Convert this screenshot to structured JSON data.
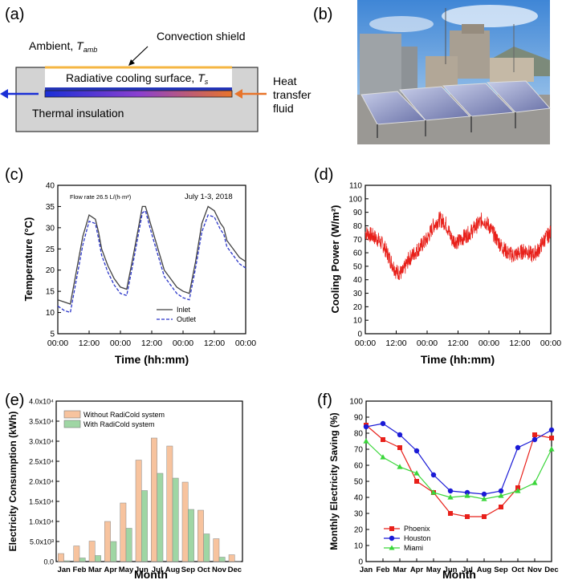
{
  "panels": {
    "a": {
      "label": "(a)",
      "ambient": "Ambient,",
      "ambient_sym": "T",
      "ambient_sub": "amb",
      "convection_shield": "Convection shield",
      "surface": "Radiative cooling surface,",
      "surface_sym": "T",
      "surface_sub": "s",
      "heat_transfer_1": "Heat",
      "heat_transfer_2": "transfer",
      "heat_transfer_3": "fluid",
      "insulation": "Thermal insulation",
      "colors": {
        "shield": "#f5b642",
        "hot_fluid": "#e8742a",
        "cold_fluid": "#1a2fd6",
        "box_fill": "#d3d3d3"
      }
    },
    "b": {
      "label": "(b)"
    },
    "c": {
      "label": "(c)"
    },
    "d": {
      "label": "(d)"
    },
    "e": {
      "label": "(e)"
    },
    "f": {
      "label": "(f)"
    }
  },
  "chart_data": [
    {
      "id": "c",
      "type": "line",
      "ylabel": "Temperature (°C)",
      "xlabel": "Time (hh:mm)",
      "annotation_left": "Flow rate 26.5 L/(h·m²)",
      "annotation_right": "July 1-3, 2018",
      "ylim": [
        5,
        40
      ],
      "yticks": [
        "5",
        "10",
        "15",
        "20",
        "25",
        "30",
        "35",
        "40"
      ],
      "xlim": [
        0,
        60
      ],
      "xticks": [
        "00:00",
        "12:00",
        "00:00",
        "12:00",
        "00:00",
        "12:00",
        "00:00"
      ],
      "series": [
        {
          "name": "Inlet",
          "color": "#404040",
          "style": "solid",
          "x": [
            0,
            2,
            4,
            6,
            8,
            10,
            12,
            13,
            14,
            16,
            18,
            20,
            22,
            24,
            26,
            27,
            28,
            30,
            32,
            34,
            36,
            38,
            40,
            42,
            44,
            46,
            48,
            50,
            52,
            53,
            54,
            56,
            58,
            60
          ],
          "values": [
            13,
            12.5,
            12,
            20,
            28,
            33,
            32,
            29,
            25,
            21,
            18,
            16,
            15.5,
            23,
            31,
            35,
            35,
            30,
            25,
            20,
            18,
            16,
            15,
            14.5,
            22,
            31,
            35,
            34,
            31,
            30,
            27,
            25,
            23,
            22
          ]
        },
        {
          "name": "Outlet",
          "color": "#2a35c9",
          "style": "dashed",
          "x": [
            0,
            2,
            4,
            6,
            8,
            10,
            12,
            13,
            14,
            16,
            18,
            20,
            22,
            24,
            26,
            27,
            28,
            30,
            32,
            34,
            36,
            38,
            40,
            42,
            44,
            46,
            48,
            50,
            52,
            53,
            54,
            56,
            58,
            60
          ],
          "values": [
            11.5,
            10.5,
            10,
            18,
            26,
            31.5,
            31,
            27.5,
            23.5,
            19.5,
            16.5,
            14.5,
            14,
            21.5,
            29.5,
            33.5,
            34,
            28.5,
            23.5,
            18.5,
            16.5,
            14.5,
            13.5,
            13,
            20.5,
            29,
            33,
            32.5,
            29.5,
            28.5,
            25.5,
            23.5,
            21.5,
            20.5
          ]
        }
      ]
    },
    {
      "id": "d",
      "type": "line",
      "ylabel": "Cooling Power (W/m²)",
      "xlabel": "Time (hh:mm)",
      "ylim": [
        0,
        110
      ],
      "yticks": [
        "0",
        "10",
        "20",
        "30",
        "40",
        "50",
        "60",
        "70",
        "80",
        "90",
        "100",
        "110"
      ],
      "xlim": [
        0,
        60
      ],
      "xticks": [
        "00:00",
        "12:00",
        "00:00",
        "12:00",
        "00:00",
        "12:00",
        "00:00"
      ],
      "series": [
        {
          "name": "Cooling Power",
          "color": "#e8201a",
          "x": [
            0,
            2,
            4,
            6,
            8,
            10,
            12,
            14,
            16,
            18,
            20,
            22,
            24,
            26,
            28,
            30,
            32,
            34,
            36,
            38,
            40,
            42,
            44,
            46,
            48,
            50,
            52,
            54,
            56,
            58,
            60
          ],
          "values": [
            75,
            73,
            70,
            65,
            55,
            46,
            45,
            55,
            60,
            65,
            70,
            80,
            85,
            82,
            70,
            68,
            72,
            75,
            80,
            85,
            80,
            72,
            65,
            60,
            58,
            60,
            62,
            58,
            62,
            70,
            75
          ]
        }
      ]
    },
    {
      "id": "e",
      "type": "bar",
      "ylabel": "Electricity Consumption (kWh)",
      "xlabel": "Month",
      "ylim": [
        0,
        40000
      ],
      "yticks": [
        "0.0",
        "5.0x10³",
        "1.0x10⁴",
        "1.5x10⁴",
        "2.0x10⁴",
        "2.5x10⁴",
        "3.0x10⁴",
        "3.5x10⁴",
        "4.0x10⁴"
      ],
      "categories": [
        "Jan",
        "Feb",
        "Mar",
        "Apr",
        "May",
        "Jun",
        "Jul",
        "Aug",
        "Sep",
        "Oct",
        "Nov",
        "Dec"
      ],
      "series": [
        {
          "name": "Without RadiCold system",
          "color": "#f7c39e",
          "values": [
            2000,
            3900,
            5100,
            10000,
            14600,
            25300,
            30800,
            28800,
            19800,
            12800,
            5700,
            1700
          ]
        },
        {
          "name": "With RadiCold system",
          "color": "#9fd6a4",
          "values": [
            200,
            900,
            1500,
            5000,
            8300,
            17700,
            22000,
            20800,
            13000,
            6900,
            1100,
            100
          ]
        }
      ]
    },
    {
      "id": "f",
      "type": "line",
      "ylabel": "Monthly Electricity Saving (%)",
      "xlabel": "Month",
      "ylim": [
        0,
        100
      ],
      "yticks": [
        "0",
        "10",
        "20",
        "30",
        "40",
        "50",
        "60",
        "70",
        "80",
        "90",
        "100"
      ],
      "categories": [
        "Jan",
        "Feb",
        "Mar",
        "Apr",
        "May",
        "Jun",
        "Jul",
        "Aug",
        "Sep",
        "Oct",
        "Nov",
        "Dec"
      ],
      "series": [
        {
          "name": "Phoenix",
          "color": "#e8201a",
          "marker": "square",
          "values": [
            85,
            76,
            71,
            50,
            43,
            30,
            28,
            28,
            34,
            46,
            79,
            77
          ]
        },
        {
          "name": "Houston",
          "color": "#1a1ad6",
          "marker": "circle",
          "values": [
            84,
            86,
            79,
            69,
            54,
            44,
            43,
            42,
            44,
            71,
            76,
            82
          ]
        },
        {
          "name": "Miami",
          "color": "#3ad63a",
          "marker": "triangle",
          "values": [
            75,
            65,
            59,
            55,
            43,
            40,
            41,
            39,
            41,
            44,
            49,
            70
          ]
        }
      ]
    }
  ]
}
